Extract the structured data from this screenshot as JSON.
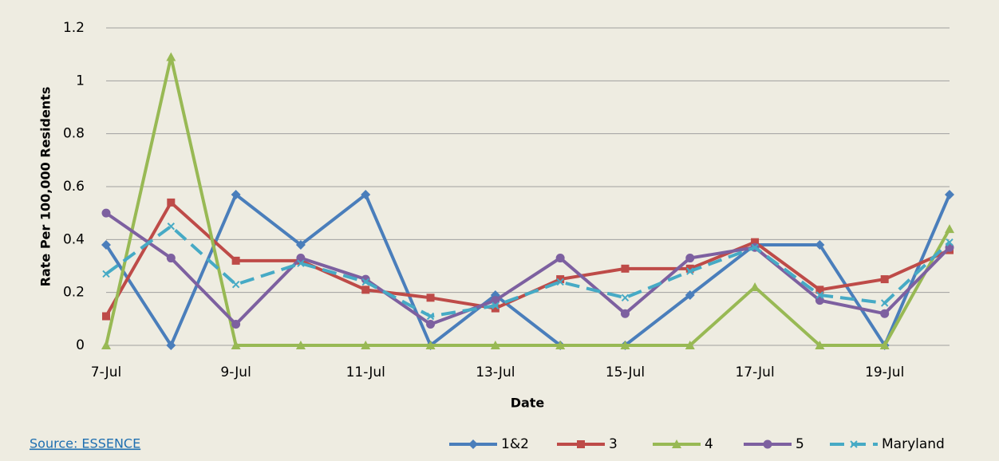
{
  "chart_data": {
    "type": "line",
    "x_label": "Date",
    "y_label": "Rate Per 100,000 Residents",
    "source": "Source: ESSENCE",
    "categories": [
      "7-Jul",
      null,
      "9-Jul",
      null,
      "11-Jul",
      null,
      "13-Jul",
      null,
      "15-Jul",
      null,
      "17-Jul",
      null,
      "19-Jul",
      null
    ],
    "series": [
      {
        "name": "1&2",
        "color": "#4a7ebb",
        "marker": "diamond",
        "values": [
          0.38,
          0,
          0.57,
          0.38,
          0.57,
          0,
          0.19,
          0,
          0,
          0.19,
          0.38,
          0.38,
          0,
          0.57
        ]
      },
      {
        "name": "3",
        "color": "#be4b48",
        "marker": "square",
        "values": [
          0.11,
          0.54,
          0.32,
          0.32,
          0.21,
          0.18,
          0.14,
          0.25,
          0.29,
          0.29,
          0.39,
          0.21,
          0.25,
          0.36
        ]
      },
      {
        "name": "4",
        "color": "#98b954",
        "marker": "triangle",
        "values": [
          0,
          1.09,
          0,
          0,
          0,
          0,
          0,
          0,
          0,
          0,
          0.22,
          0,
          0,
          0.44
        ]
      },
      {
        "name": "5",
        "color": "#7d60a0",
        "marker": "circle",
        "values": [
          0.5,
          0.33,
          0.08,
          0.33,
          0.25,
          0.08,
          0.17,
          0.33,
          0.12,
          0.33,
          0.37,
          0.17,
          0.12,
          0.37
        ]
      },
      {
        "name": "Maryland",
        "color": "#46aac5",
        "marker": "x",
        "dashed": true,
        "values": [
          0.27,
          0.45,
          0.23,
          0.31,
          0.24,
          0.11,
          0.15,
          0.24,
          0.18,
          0.28,
          0.37,
          0.19,
          0.16,
          0.39
        ]
      }
    ],
    "ylim": [
      0,
      1.2
    ],
    "yticks": [
      0,
      0.2,
      0.4,
      0.6,
      0.8,
      1,
      1.2
    ],
    "grid": true,
    "legend": "bottom-right"
  }
}
